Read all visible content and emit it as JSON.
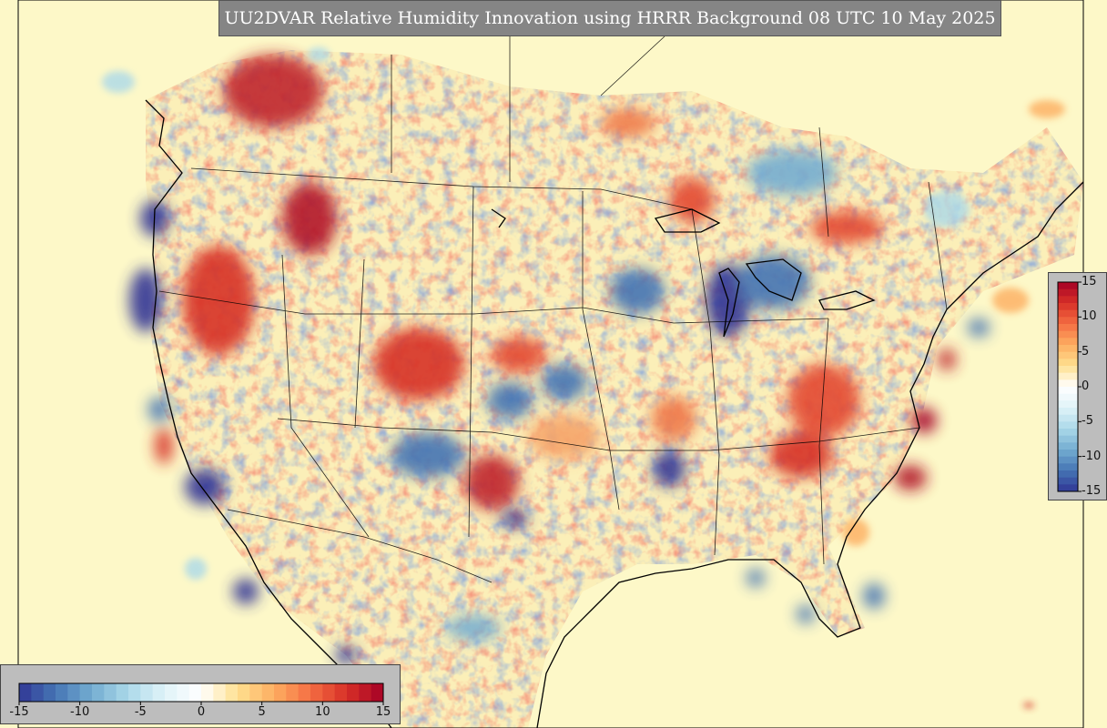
{
  "title": "UU2DVAR Relative Humidity Innovation using HRRR Background 08 UTC 10 May 2025",
  "colorbar": {
    "min": -15,
    "max": 15,
    "colors": [
      "#313695",
      "#4575b4",
      "#74add1",
      "#abd9e9",
      "#e0f3f8",
      "#ffffff",
      "#fee090",
      "#fdae61",
      "#f46d43",
      "#d73027",
      "#a50026"
    ],
    "horizontal_ticks": [
      "-15",
      "-10",
      "-5",
      "0",
      "5",
      "10",
      "15"
    ],
    "vertical_ticks": [
      "15",
      "10",
      "5",
      "0",
      "-5",
      "-10",
      "-15"
    ]
  }
}
